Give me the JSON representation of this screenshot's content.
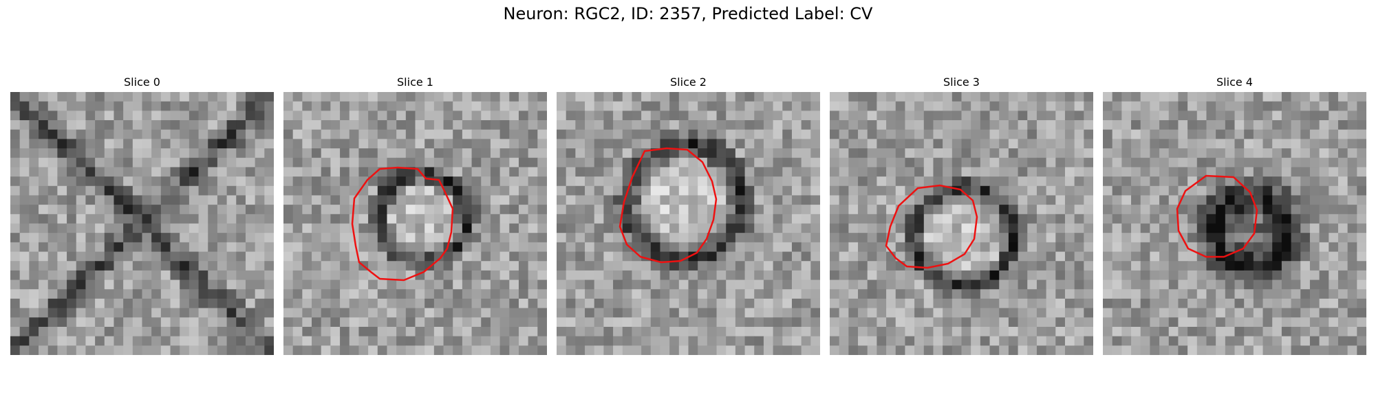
{
  "figure": {
    "title": "Neuron: RGC2, ID: 2357, Predicted Label: CV",
    "contour_color": "#ee1111"
  },
  "slices": [
    {
      "title": "Slice 0",
      "has_contour": false
    },
    {
      "title": "Slice 1",
      "has_contour": true
    },
    {
      "title": "Slice 2",
      "has_contour": true
    },
    {
      "title": "Slice 3",
      "has_contour": true
    },
    {
      "title": "Slice 4",
      "has_contour": true
    }
  ]
}
